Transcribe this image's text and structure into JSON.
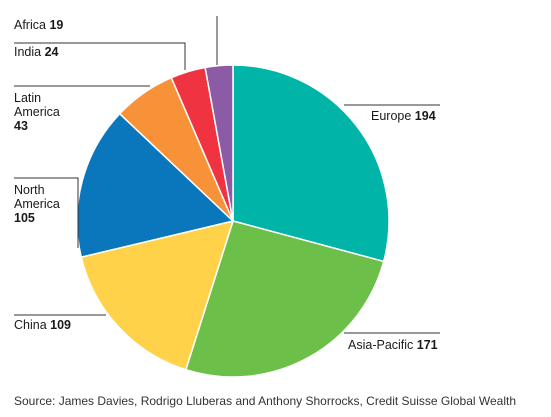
{
  "chart_data": {
    "type": "pie",
    "title": "",
    "slices": [
      {
        "label": "Europe",
        "value": 194,
        "color": "#00b5a8"
      },
      {
        "label": "Asia-Pacific",
        "value": 171,
        "color": "#6cc04a"
      },
      {
        "label": "China",
        "value": 109,
        "color": "#ffd24a"
      },
      {
        "label": "North America",
        "value": 105,
        "color": "#0a77bd"
      },
      {
        "label": "Latin America",
        "value": 43,
        "color": "#f79239"
      },
      {
        "label": "India",
        "value": 24,
        "color": "#ef3340"
      },
      {
        "label": "Africa",
        "value": 19,
        "color": "#8b5ba5"
      }
    ],
    "label_text": {
      "europe": {
        "name": "Europe",
        "value": "194"
      },
      "asia": {
        "name": "Asia-Pacific",
        "value": "171"
      },
      "china": {
        "name": "China",
        "value": "109"
      },
      "north_america": {
        "line1": "North",
        "line2": "America",
        "value": "105"
      },
      "latin_america": {
        "line1": "Latin",
        "line2": "America",
        "value": "43"
      },
      "india": {
        "name": "India",
        "value": "24"
      },
      "africa": {
        "name": "Africa",
        "value": "19"
      }
    }
  },
  "source": "Source: James Davies, Rodrigo Lluberas and Anthony Shorrocks, Credit Suisse Global Wealth"
}
